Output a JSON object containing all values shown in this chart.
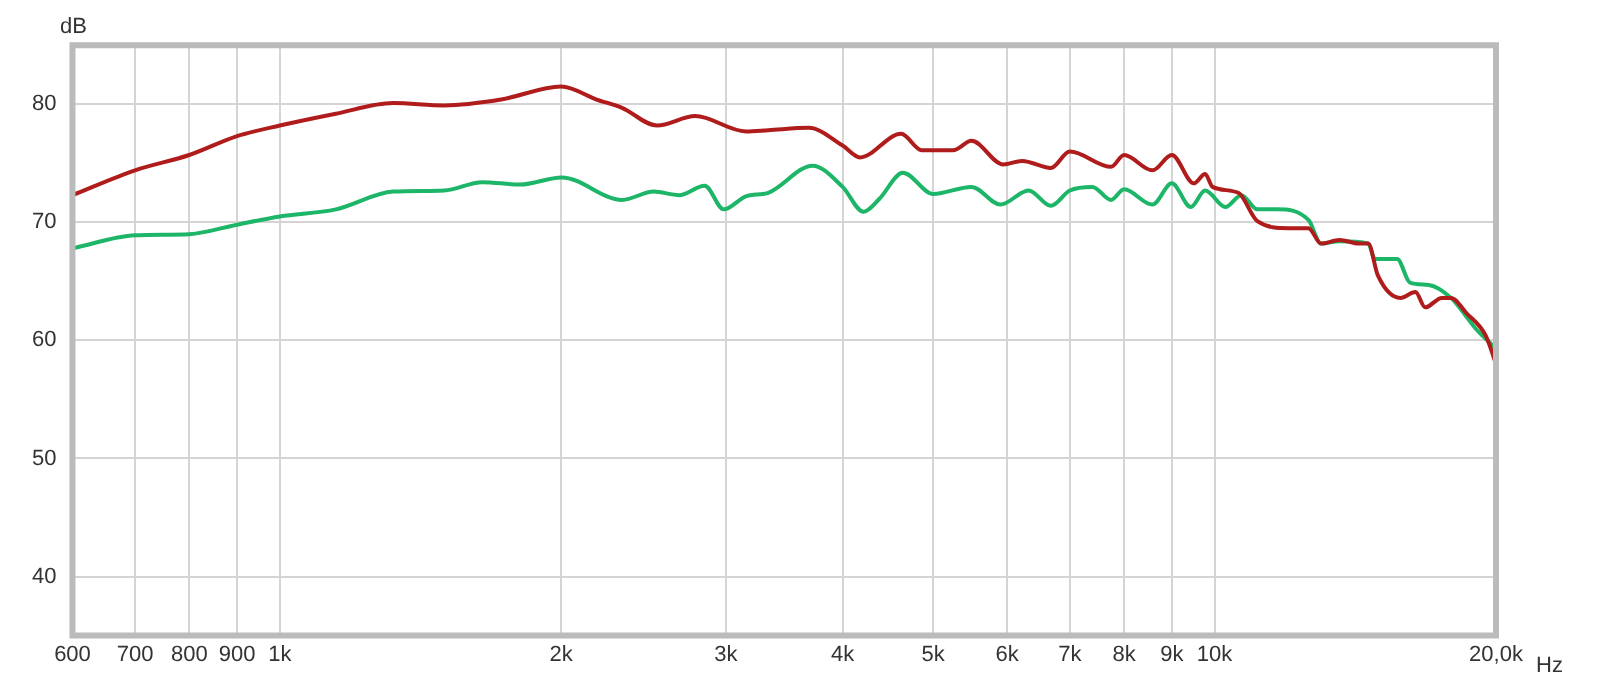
{
  "chart_data": {
    "type": "line",
    "xlabel": "Hz",
    "ylabel": "dB",
    "log": "x",
    "grid": true,
    "legend": false,
    "marker": "none",
    "line_style": "solid",
    "xlim": [
      600,
      20000
    ],
    "ylim": [
      35,
      85
    ],
    "xticks": [
      600,
      700,
      800,
      900,
      {
        "value": 1000,
        "label": "1k"
      },
      {
        "value": 2000,
        "label": "2k"
      },
      {
        "value": 3000,
        "label": "3k"
      },
      {
        "value": 4000,
        "label": "4k"
      },
      {
        "value": 5000,
        "label": "5k"
      },
      {
        "value": 6000,
        "label": "6k"
      },
      {
        "value": 7000,
        "label": "7k"
      },
      {
        "value": 8000,
        "label": "8k"
      },
      {
        "value": 9000,
        "label": "9k"
      },
      {
        "value": 10000,
        "label": "10k"
      },
      {
        "value": 20000,
        "label": "20,0k"
      }
    ],
    "yticks": [
      40,
      50,
      60,
      70,
      80
    ],
    "series": [
      {
        "color": "#b01c1c",
        "x": [
          600,
          700,
          800,
          900,
          1000,
          1148,
          1322,
          1499,
          1725,
          2000,
          2182,
          2323,
          2532,
          2782,
          3152,
          3330,
          3680,
          4000,
          4175,
          4620,
          4860,
          5250,
          5495,
          5940,
          6226,
          6680,
          7000,
          7750,
          8000,
          8580,
          9000,
          9500,
          9770,
          9950,
          10600,
          11110,
          12000,
          12600,
          13000,
          13600,
          14270,
          14600,
          14950,
          15800,
          16400,
          16800,
          17500,
          17900,
          18600,
          19500,
          20000
        ],
        "values": [
          72.3,
          74.4,
          75.7,
          77.3,
          78.2,
          79.2,
          80.1,
          79.9,
          80.4,
          81.5,
          80.4,
          79.7,
          78.2,
          79.0,
          77.7,
          77.8,
          78.0,
          76.5,
          75.5,
          77.5,
          76.1,
          76.1,
          76.9,
          74.9,
          75.2,
          74.6,
          76.0,
          74.7,
          75.7,
          74.4,
          75.7,
          73.3,
          74.1,
          73.0,
          72.5,
          70.1,
          69.5,
          69.5,
          68.2,
          68.5,
          68.2,
          68.2,
          65.5,
          63.6,
          64.1,
          62.8,
          63.6,
          63.6,
          62.3,
          60.4,
          58.0
        ]
      },
      {
        "color": "#1db567",
        "x": [
          600,
          700,
          800,
          900,
          1000,
          1148,
          1322,
          1499,
          1646,
          1808,
          2002,
          2323,
          2512,
          2674,
          2848,
          2984,
          3152,
          3330,
          3715,
          4000,
          4210,
          4380,
          4640,
          5000,
          5495,
          5900,
          6325,
          6680,
          7000,
          7400,
          7750,
          8000,
          8580,
          9000,
          9430,
          9770,
          10270,
          10680,
          11110,
          11650,
          12600,
          13000,
          13600,
          14600,
          14840,
          15680,
          16180,
          16950,
          17900,
          19070,
          20000
        ],
        "values": [
          67.8,
          68.9,
          69.0,
          69.8,
          70.5,
          71.1,
          72.6,
          72.7,
          73.4,
          73.2,
          73.8,
          71.9,
          72.6,
          72.3,
          73.1,
          71.1,
          72.2,
          72.5,
          74.8,
          73.0,
          70.9,
          72.0,
          74.2,
          72.4,
          73.0,
          71.5,
          72.7,
          71.4,
          72.7,
          73.0,
          71.9,
          72.8,
          71.5,
          73.3,
          71.3,
          72.7,
          71.3,
          72.3,
          71.1,
          71.1,
          70.2,
          68.2,
          68.4,
          68.2,
          66.9,
          66.9,
          64.9,
          64.7,
          63.6,
          60.9,
          59.3
        ]
      }
    ]
  }
}
